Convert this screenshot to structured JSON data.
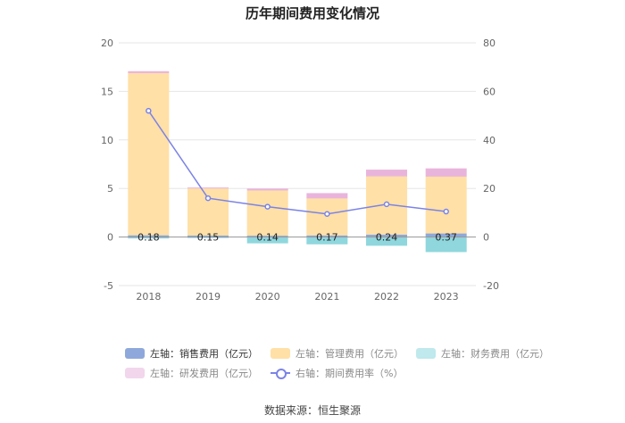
{
  "chart_data": {
    "type": "bar",
    "title": "历年期间费用变化情况",
    "categories": [
      "2018",
      "2019",
      "2020",
      "2021",
      "2022",
      "2023"
    ],
    "left_axis": {
      "ylim": [
        -5,
        20
      ],
      "ticks": [
        "-5",
        "0",
        "5",
        "10",
        "15",
        "20"
      ]
    },
    "right_axis": {
      "ylim": [
        -20,
        80
      ],
      "ticks": [
        "-20",
        "0",
        "20",
        "40",
        "60",
        "80"
      ]
    },
    "series": [
      {
        "name": "左轴：销售费用（亿元）",
        "axis": "left",
        "stack": true,
        "color": "#8fa8db",
        "values": [
          0.18,
          0.15,
          0.14,
          0.17,
          0.24,
          0.37
        ],
        "labels": [
          "0.18",
          "0.15",
          "0.14",
          "0.17",
          "0.24",
          "0.37"
        ]
      },
      {
        "name": "左轴：管理费用（亿元）",
        "axis": "left",
        "stack": true,
        "color": "#ffe0a6",
        "values": [
          16.7,
          4.85,
          4.65,
          3.8,
          6.0,
          5.85
        ]
      },
      {
        "name": "左轴：财务费用（亿元）",
        "axis": "left",
        "stack": true,
        "color": "#8fd7dd",
        "values": [
          -0.15,
          -0.1,
          -0.65,
          -0.75,
          -0.9,
          -1.55
        ]
      },
      {
        "name": "左轴：研发费用（亿元）",
        "axis": "left",
        "stack": true,
        "color": "#e9b4db",
        "values": [
          0.2,
          0.1,
          0.2,
          0.55,
          0.7,
          0.85
        ]
      },
      {
        "name": "右轴：期间费用率（%）",
        "axis": "right",
        "type": "line",
        "color": "#7b83e6",
        "values": [
          52.0,
          16.0,
          12.5,
          9.5,
          13.5,
          10.5
        ]
      }
    ]
  },
  "legend": {
    "row1": [
      "左轴：销售费用（亿元）",
      "左轴：管理费用（亿元）",
      "左轴：财务费用（亿元）"
    ],
    "row2": [
      "左轴：研发费用（亿元）",
      "右轴：期间费用率（%）"
    ]
  },
  "source": "数据来源：恒生聚源"
}
